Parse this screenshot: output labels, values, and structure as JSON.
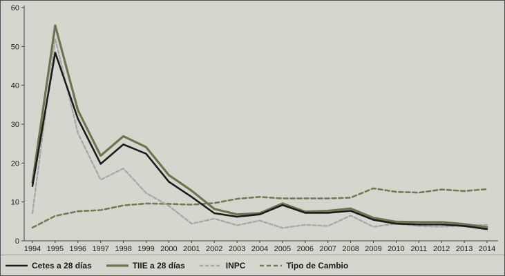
{
  "chart_data": {
    "type": "line",
    "title": "",
    "xlabel": "",
    "ylabel": "",
    "x": [
      1994,
      1995,
      1996,
      1997,
      1998,
      1999,
      2000,
      2001,
      2002,
      2003,
      2004,
      2005,
      2006,
      2007,
      2008,
      2009,
      2010,
      2011,
      2012,
      2013,
      2014
    ],
    "ylim": [
      0,
      60
    ],
    "yticks": [
      0,
      10,
      20,
      30,
      40,
      50,
      60
    ],
    "grid": false,
    "legend_position": "bottom",
    "series": [
      {
        "name": "Cetes a 28 días",
        "color": "#1b1b1b",
        "dash": "",
        "width": 2.6,
        "values": [
          14.1,
          48.4,
          31.4,
          19.8,
          24.8,
          22.4,
          15.2,
          11.3,
          7.1,
          6.2,
          6.8,
          9.2,
          7.2,
          7.2,
          7.7,
          5.4,
          4.4,
          4.2,
          4.2,
          3.8,
          3.0
        ]
      },
      {
        "name": "TIIE a 28 días",
        "color": "#6e7351",
        "dash": "",
        "width": 3.2,
        "values": [
          15.0,
          55.4,
          33.6,
          21.9,
          26.9,
          24.1,
          16.9,
          12.9,
          8.2,
          6.8,
          7.1,
          9.6,
          7.5,
          7.7,
          8.3,
          5.9,
          4.9,
          4.8,
          4.8,
          4.3,
          3.5
        ]
      },
      {
        "name": "INPC",
        "color": "#a8a8ac",
        "dash": "5 3",
        "width": 2.4,
        "values": [
          7.1,
          52.0,
          27.7,
          15.7,
          18.6,
          12.3,
          9.0,
          4.4,
          5.7,
          4.0,
          5.2,
          3.3,
          4.1,
          3.8,
          6.5,
          3.6,
          4.4,
          3.8,
          3.6,
          4.0,
          4.1
        ]
      },
      {
        "name": "Tipo de Cambio",
        "color": "#747955",
        "dash": "6 4",
        "width": 2.6,
        "values": [
          3.4,
          6.4,
          7.6,
          7.9,
          9.1,
          9.6,
          9.5,
          9.3,
          9.7,
          10.8,
          11.3,
          10.9,
          10.9,
          10.9,
          11.1,
          13.5,
          12.6,
          12.4,
          13.2,
          12.8,
          13.3
        ]
      }
    ]
  },
  "colors": {
    "background": "#d6d6ce",
    "axis": "#3c3c3c",
    "text": "#1a1a1a",
    "border": "#4f4f4f"
  }
}
